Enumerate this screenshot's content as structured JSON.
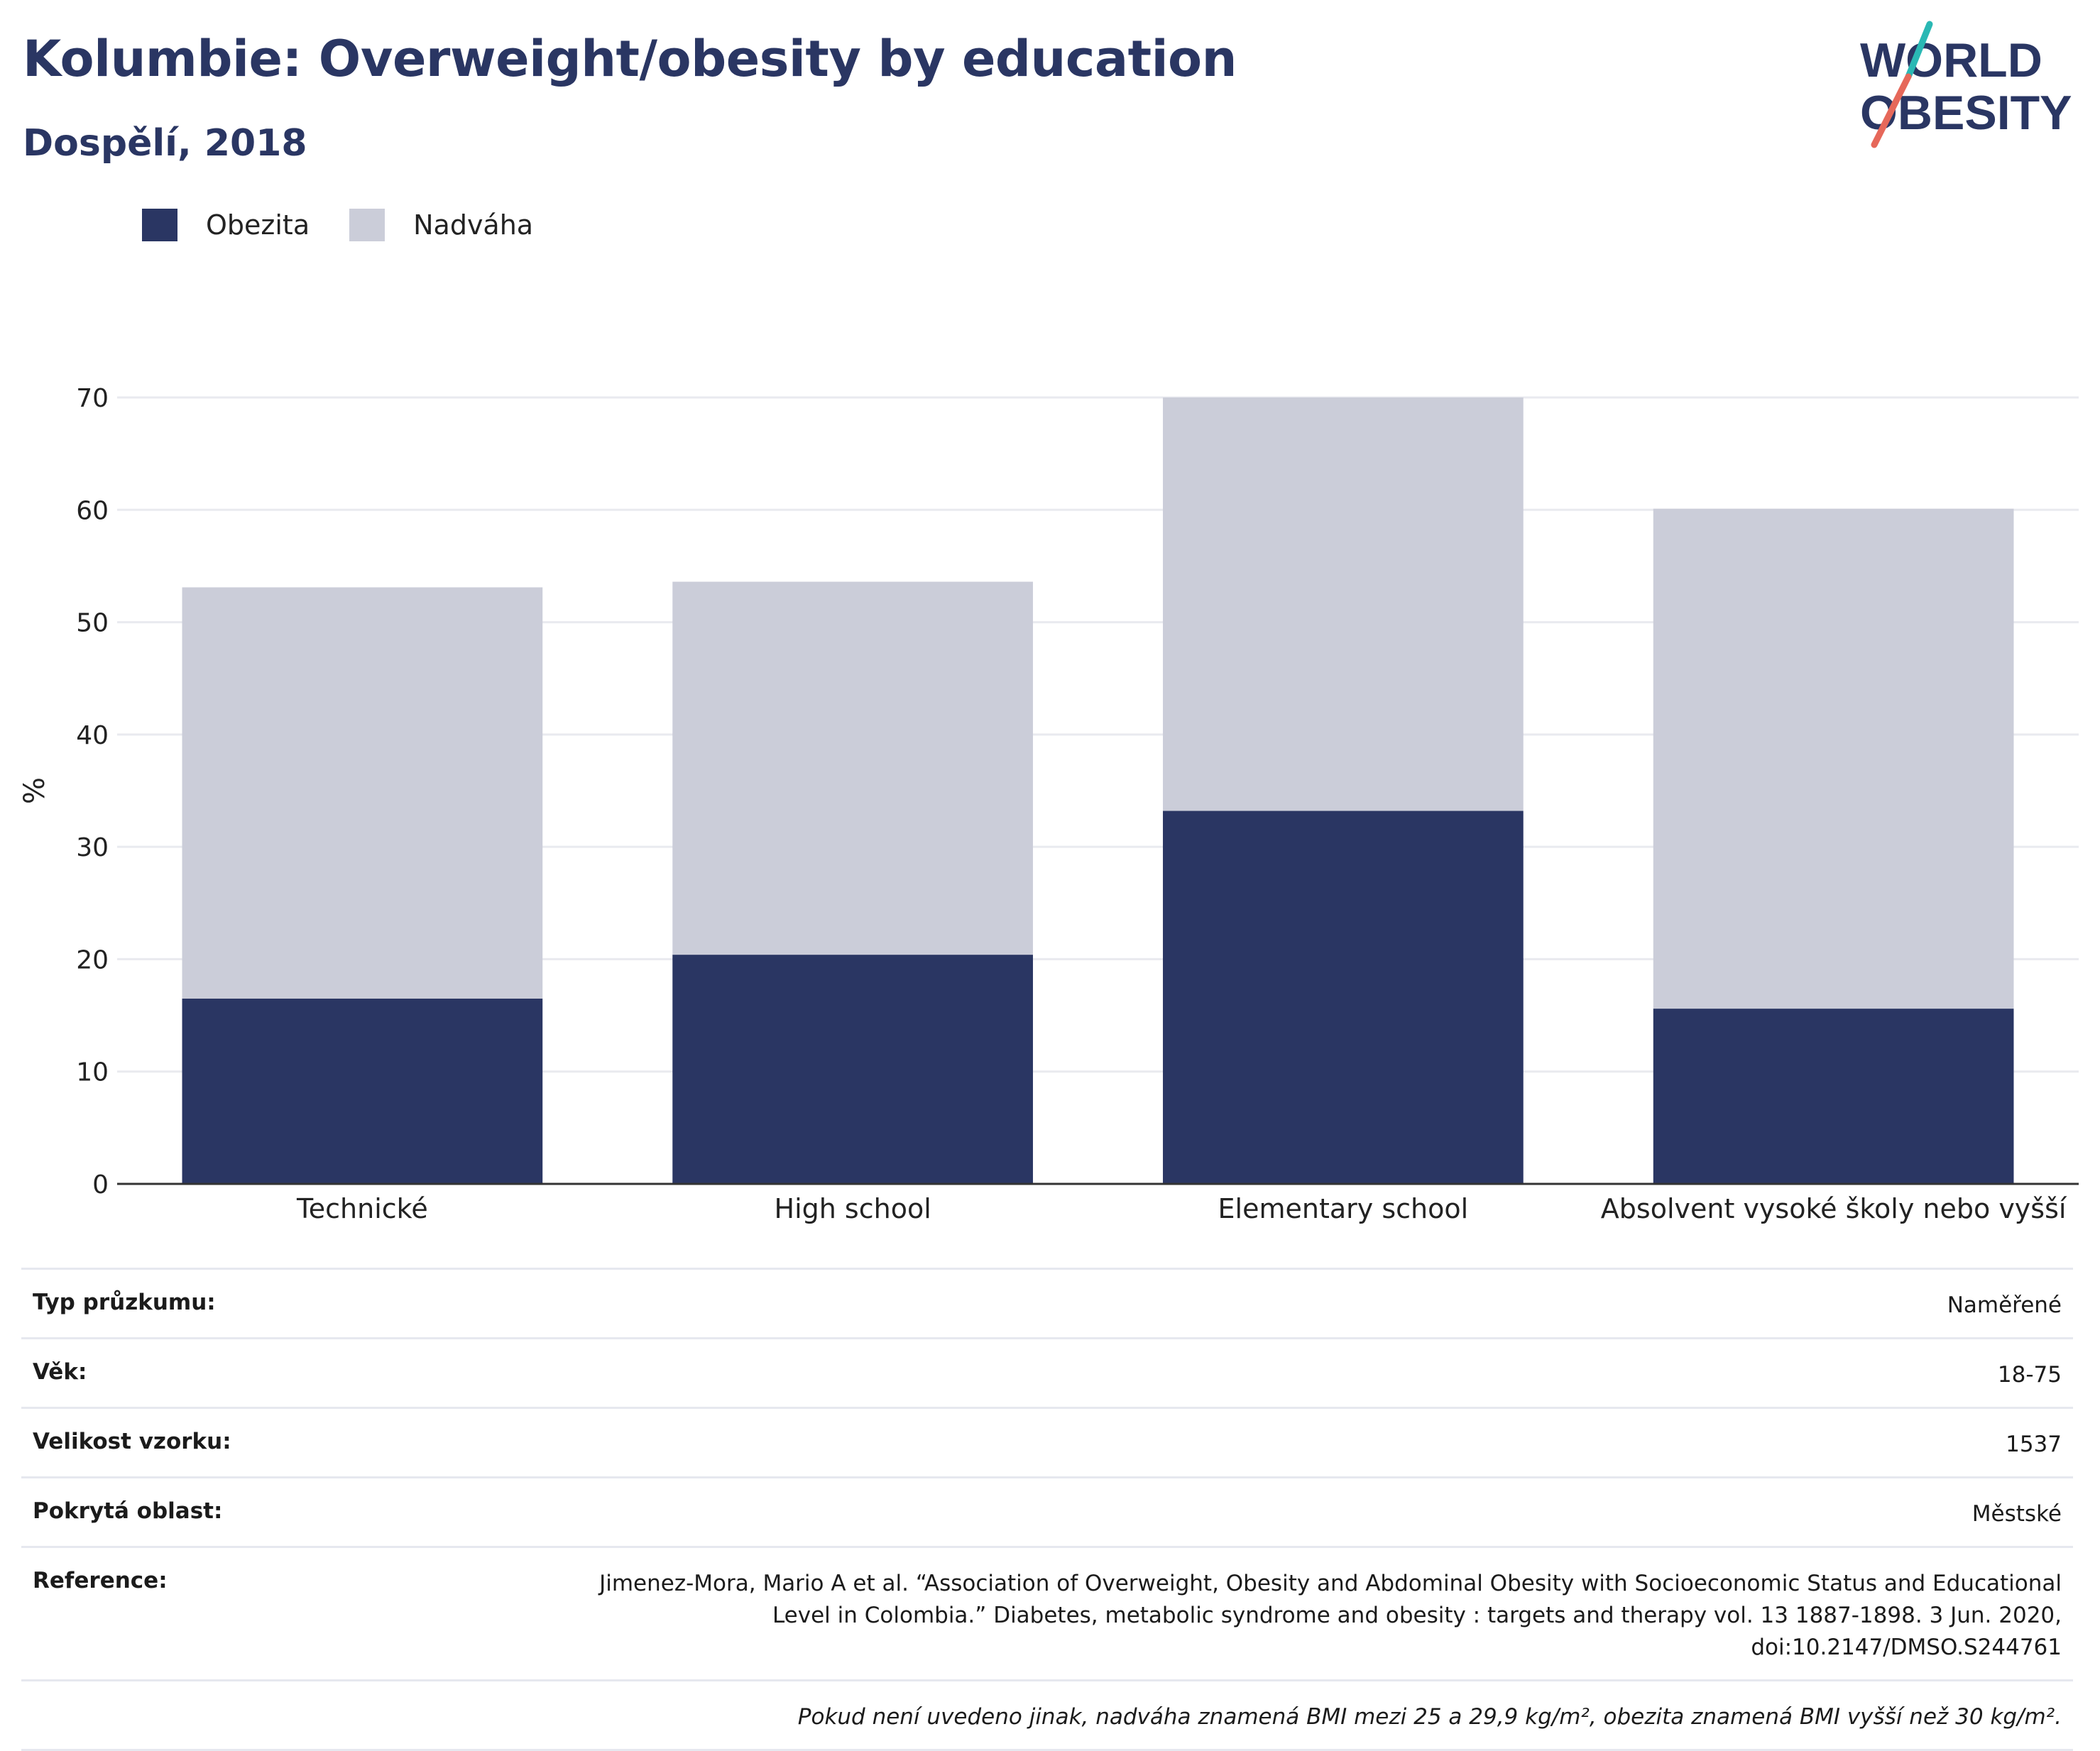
{
  "header": {
    "title": "Kolumbie: Overweight/obesity by education",
    "subtitle": "Dospělí, 2018"
  },
  "logo": {
    "line1": "WORLD",
    "line2": "OBESITY"
  },
  "colors": {
    "obesity": "#2a3663",
    "overweight": "#cbcdd9",
    "title": "#2a3663",
    "logo_teal": "#2ab8b4",
    "logo_coral": "#e6685a",
    "grid": "#e9eaef",
    "axis": "#333333"
  },
  "legend": [
    {
      "label": "Obezita",
      "color": "#2a3663"
    },
    {
      "label": "Nadváha",
      "color": "#cbcdd9"
    }
  ],
  "chart_data": {
    "type": "bar",
    "stacked": true,
    "categories": [
      "Technické",
      "High school",
      "Elementary school",
      "Absolvent vysoké školy nebo vyšší"
    ],
    "series": [
      {
        "name": "Obezita",
        "values": [
          16.5,
          20.4,
          33.2,
          15.6
        ],
        "color": "#2a3663"
      },
      {
        "name": "Nadváha",
        "values": [
          36.6,
          33.2,
          36.8,
          44.5
        ],
        "color": "#cbcdd9"
      }
    ],
    "ylabel": "%",
    "ylim": [
      0,
      70
    ],
    "yticks": [
      0,
      10,
      20,
      30,
      40,
      50,
      60,
      70
    ],
    "grid": true,
    "legend_position": "top-left"
  },
  "info": [
    {
      "key": "Typ průzkumu:",
      "value": "Naměřené"
    },
    {
      "key": "Věk:",
      "value": "18-75"
    },
    {
      "key": "Velikost vzorku:",
      "value": "1537"
    },
    {
      "key": "Pokrytá oblast:",
      "value": "Městské"
    }
  ],
  "reference": {
    "key": "Reference:",
    "value": "Jimenez-Mora, Mario A et al. “Association of Overweight, Obesity and Abdominal Obesity with Socioeconomic Status and Educational Level in Colombia.” Diabetes, metabolic syndrome and obesity : targets and therapy vol. 13 1887-1898. 3 Jun. 2020, doi:10.2147/DMSO.S244761"
  },
  "note": "Pokud není uvedeno jinak, nadváha znamená BMI mezi 25 a 29,9 kg/m², obezita znamená BMI vyšší než 30 kg/m²."
}
